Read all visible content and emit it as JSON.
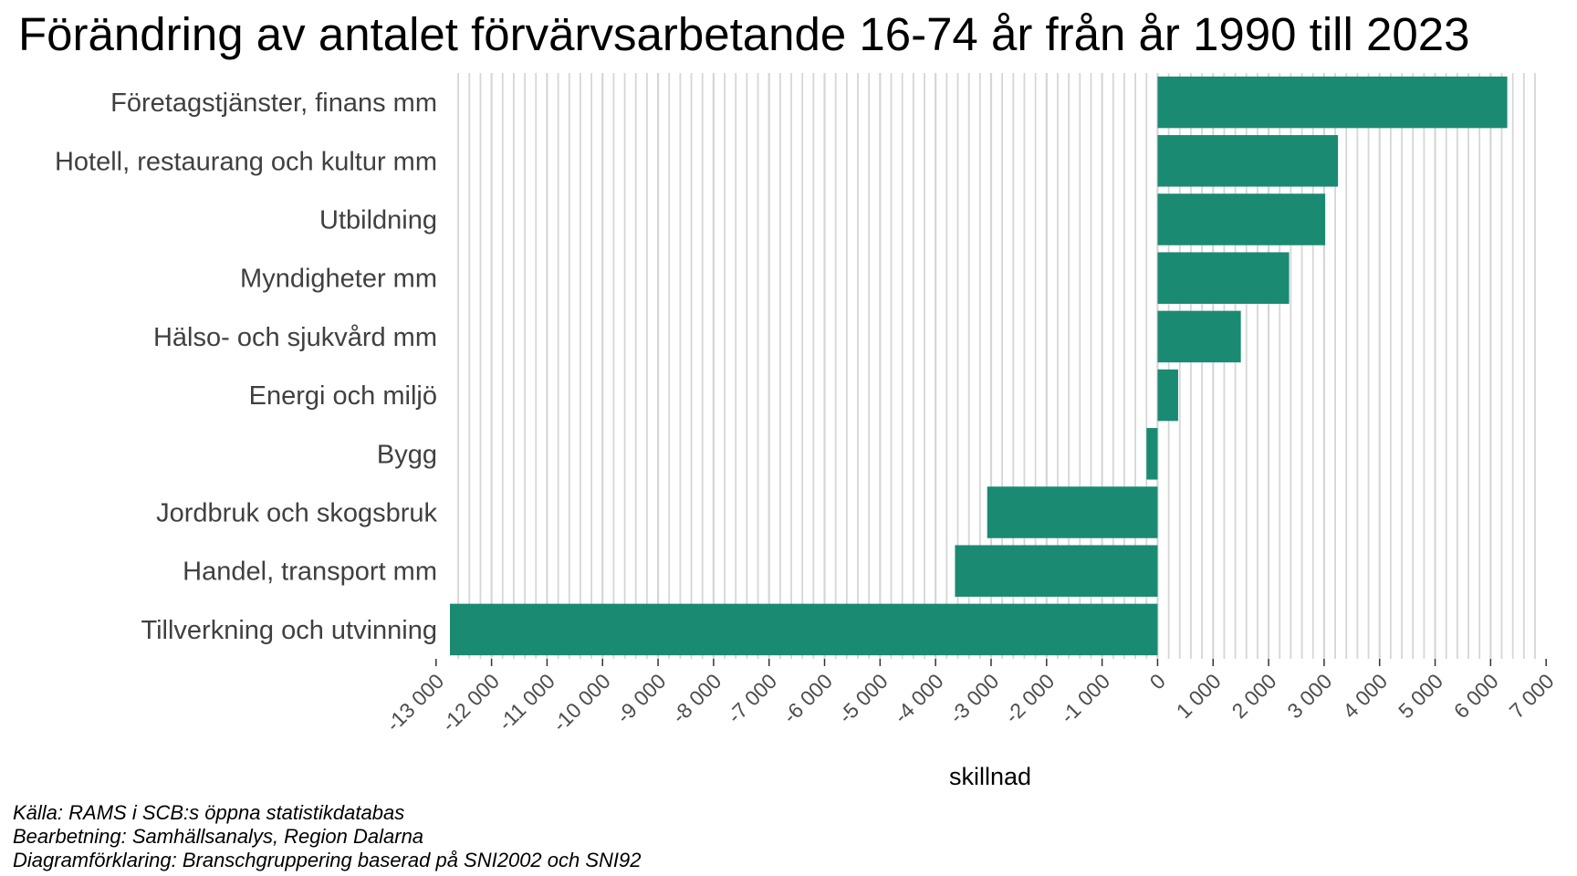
{
  "chart_data": {
    "type": "bar",
    "orientation": "horizontal",
    "title": "Förändring av antalet förvärvsarbetande 16-74 år från år 1990 till 2023",
    "xlabel": "skillnad",
    "ylabel": "",
    "categories": [
      "Företagstjänster, finans mm",
      "Hotell, restaurang och kultur mm",
      "Utbildning",
      "Myndigheter mm",
      "Hälso- och sjukvård mm",
      "Energi och miljö",
      "Bygg",
      "Jordbruk och skogsbruk",
      "Handel, transport mm",
      "Tillverkning och utvinning"
    ],
    "values": [
      6300,
      3250,
      3020,
      2370,
      1500,
      370,
      -200,
      -3070,
      -3650,
      -12750
    ],
    "xlim": [
      -12750,
      6800
    ],
    "xticks": [
      -13000,
      -12000,
      -11000,
      -10000,
      -9000,
      -8000,
      -7000,
      -6000,
      -5000,
      -4000,
      -3000,
      -2000,
      -1000,
      0,
      1000,
      2000,
      3000,
      4000,
      5000,
      6000,
      7000
    ],
    "xtick_labels": [
      "-13 000",
      "-12 000",
      "-11 000",
      "-10 000",
      "-9 000",
      "-8 000",
      "-7 000",
      "-6 000",
      "-5 000",
      "-4 000",
      "-3 000",
      "-2 000",
      "-1 000",
      "0",
      "1 000",
      "2 000",
      "3 000",
      "4 000",
      "5 000",
      "6 000",
      "7 000"
    ],
    "minor_grid_step": 200,
    "grid": true,
    "legend": "none",
    "colors": {
      "bar": "#1a8a72",
      "grid": "#d6d6d6",
      "tick_text": "#4d4d4d",
      "category_text": "#404040"
    }
  },
  "notes": {
    "source": "Källa: RAMS i SCB:s öppna statistikdatabas",
    "processing": "Bearbetning: Samhällsanalys, Region Dalarna",
    "explanation": "Diagramförklaring: Branschgruppering baserad på SNI2002 och SNI92"
  }
}
